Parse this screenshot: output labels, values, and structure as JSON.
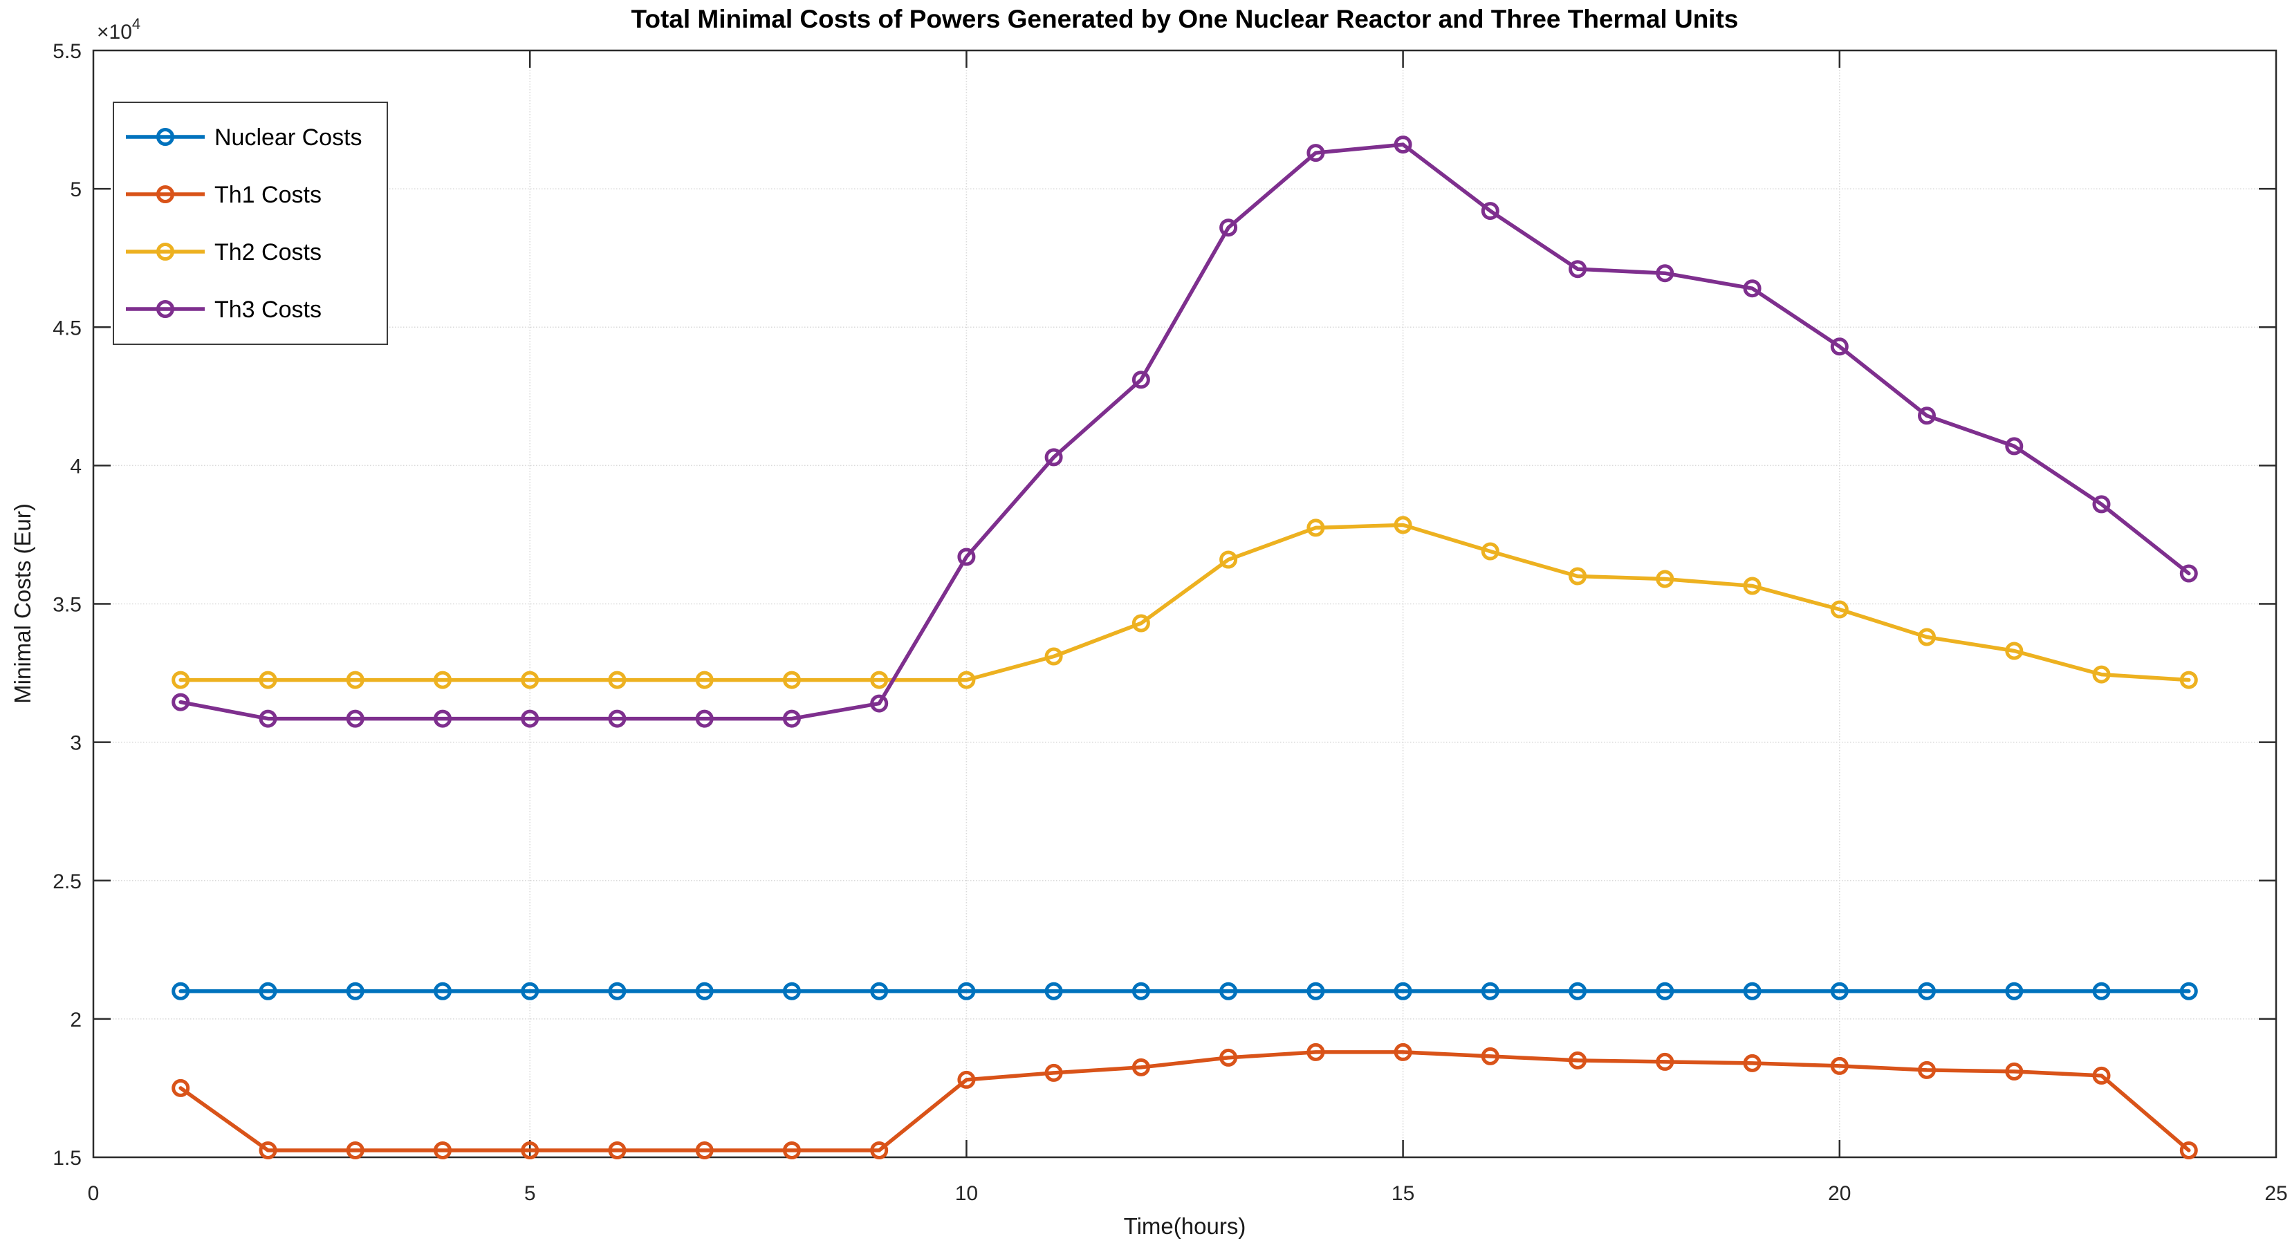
{
  "figure": {
    "background": "#ffffff",
    "axis_color": "#2b2b2b",
    "grid_color": "#d9d9d9",
    "tick_text_color": "#262626"
  },
  "chart_data": {
    "type": "line",
    "title": "Total Minimal Costs of Powers Generated by One Nuclear Reactor and Three Thermal Units",
    "xlabel": "Time(hours)",
    "ylabel": "Minimal Costs (Eur)",
    "xlim": [
      0,
      25
    ],
    "ylim": [
      15000,
      55000
    ],
    "grid": true,
    "legend_position": "top-left",
    "x": [
      1,
      2,
      3,
      4,
      5,
      6,
      7,
      8,
      9,
      10,
      11,
      12,
      13,
      14,
      15,
      16,
      17,
      18,
      19,
      20,
      21,
      22,
      23,
      24
    ],
    "series": [
      {
        "name": "Nuclear Costs",
        "color": "#0072BD",
        "values": [
          21000,
          21000,
          21000,
          21000,
          21000,
          21000,
          21000,
          21000,
          21000,
          21000,
          21000,
          21000,
          21000,
          21000,
          21000,
          21000,
          21000,
          21000,
          21000,
          21000,
          21000,
          21000,
          21000,
          21000
        ]
      },
      {
        "name": "Th1 Costs",
        "color": "#D95319",
        "values": [
          17500,
          15250,
          15250,
          15250,
          15250,
          15250,
          15250,
          15250,
          15250,
          17800,
          18050,
          18250,
          18600,
          18800,
          18800,
          18650,
          18500,
          18450,
          18400,
          18300,
          18150,
          18100,
          17950,
          15250
        ]
      },
      {
        "name": "Th2 Costs",
        "color": "#EDB120",
        "values": [
          32250,
          32250,
          32250,
          32250,
          32250,
          32250,
          32250,
          32250,
          32250,
          32250,
          33100,
          34300,
          36600,
          37750,
          37850,
          36900,
          36000,
          35900,
          35650,
          34800,
          33800,
          33300,
          32450,
          32250
        ]
      },
      {
        "name": "Th3 Costs",
        "color": "#7E2F8E",
        "values": [
          31450,
          30850,
          30850,
          30850,
          30850,
          30850,
          30850,
          30850,
          31400,
          36700,
          40300,
          43100,
          48600,
          51300,
          51600,
          49200,
          47100,
          46950,
          46400,
          44300,
          41800,
          40700,
          38600,
          36100
        ]
      }
    ],
    "xticks": {
      "values": [
        0,
        5,
        10,
        15,
        20,
        25
      ],
      "labels": [
        "0",
        "5",
        "10",
        "15",
        "20",
        "25"
      ]
    },
    "yticks": {
      "values": [
        15000,
        20000,
        25000,
        30000,
        35000,
        40000,
        45000,
        50000,
        55000
      ],
      "labels": [
        "1.5",
        "2",
        "2.5",
        "3",
        "3.5",
        "4",
        "4.5",
        "5",
        "5.5"
      ]
    },
    "y_exponent": {
      "multiplier": "×10",
      "power": "4"
    }
  }
}
